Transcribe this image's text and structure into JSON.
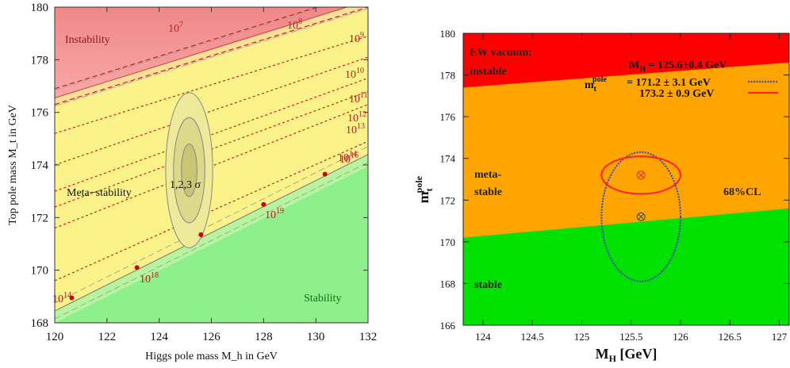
{
  "chart_data": [
    {
      "type": "area",
      "xlabel": "Higgs pole mass M_h in GeV",
      "ylabel": "Top pole mass M_t in GeV",
      "xlim": [
        120,
        132
      ],
      "ylim": [
        168,
        180
      ],
      "xticks": [
        "120",
        "122",
        "124",
        "126",
        "128",
        "130",
        "132"
      ],
      "yticks": [
        "168",
        "170",
        "172",
        "174",
        "176",
        "178",
        "180"
      ],
      "regions": [
        {
          "label": "Instability",
          "color": "#f08a8a"
        },
        {
          "label": "Meta−stability",
          "color": "#fbf38a"
        },
        {
          "label": "Stability",
          "color": "#8ef08a"
        }
      ],
      "instability_boundary": {
        "x": [
          120,
          132
        ],
        "y": [
          176.55,
          180.25
        ]
      },
      "stability_boundary": {
        "x": [
          120,
          132
        ],
        "y": [
          168.45,
          174.4
        ]
      },
      "lifetime_lines": [
        {
          "label": "10",
          "exp": "7",
          "x": [
            120,
            132
          ],
          "y": [
            176.9,
            180.6
          ]
        },
        {
          "label": "10",
          "exp": "8",
          "x": [
            120,
            132
          ],
          "y": [
            176.3,
            180.0
          ]
        },
        {
          "label": "10",
          "exp": "9",
          "x": [
            120,
            132
          ],
          "y": [
            175.2,
            178.9
          ]
        },
        {
          "label": "10",
          "exp": "10",
          "x": [
            120,
            132
          ],
          "y": [
            174.0,
            178.1
          ]
        },
        {
          "label": "10",
          "exp": "11",
          "x": [
            120,
            132
          ],
          "y": [
            173.0,
            177.3
          ]
        },
        {
          "label": "10",
          "exp": "12",
          "x": [
            120,
            132
          ],
          "y": [
            172.4,
            176.8
          ]
        },
        {
          "label": "10",
          "exp": "13",
          "x": [
            120,
            132
          ],
          "y": [
            171.6,
            176.3
          ]
        },
        {
          "label": "10",
          "exp": "14",
          "x": [
            120,
            132
          ],
          "y": [
            169.6,
            174.9
          ]
        }
      ],
      "points": [
        {
          "x": 120.65,
          "y": 168.95,
          "label": "10",
          "exp": "14"
        },
        {
          "x": 123.15,
          "y": 170.1,
          "label": "10",
          "exp": "18"
        },
        {
          "x": 125.6,
          "y": 171.35,
          "label": "",
          "exp": ""
        },
        {
          "x": 128.0,
          "y": 172.5,
          "label": "10",
          "exp": "19"
        },
        {
          "x": 130.35,
          "y": 173.65,
          "label": "10",
          "exp": "16"
        }
      ],
      "ellipse": {
        "center": [
          125.15,
          173.8
        ],
        "sigma_x": [
          0.3,
          0.6,
          0.9
        ],
        "sigma_y": [
          1.0,
          2.0,
          2.95
        ],
        "label": "1,2,3 σ"
      }
    },
    {
      "type": "area",
      "xlabel": "M",
      "xlabel_sub": "H",
      "xlabel_unit": "[GeV]",
      "ylabel": "m",
      "ylabel_sub": "t",
      "ylabel_sup": "pole",
      "xlim": [
        123.8,
        127.1
      ],
      "ylim": [
        166,
        180
      ],
      "xticks": [
        124,
        124.5,
        125,
        125.5,
        126,
        126.5,
        127
      ],
      "yticks": [
        166,
        168,
        170,
        172,
        174,
        176,
        178,
        180
      ],
      "regions": [
        {
          "label_lines": [
            "EW vacuum:",
            "instable"
          ],
          "color": "#ff0000"
        },
        {
          "label_lines": [
            "meta-",
            "stable"
          ],
          "color": "#ffa500"
        },
        {
          "label_lines": [
            "stable"
          ],
          "color": "#00e100"
        }
      ],
      "instability_boundary": {
        "x": [
          123.8,
          127.1
        ],
        "y": [
          177.4,
          178.6
        ]
      },
      "stability_boundary": {
        "x": [
          123.8,
          127.1
        ],
        "y": [
          170.2,
          171.6
        ]
      },
      "legend": {
        "mh": "M",
        "mh_sub": "H",
        "mh_value": " = 125.6±0.4 GeV",
        "mt": "m",
        "mt_sub": "t",
        "mt_sup": "pole",
        "entries": [
          {
            "text": "= 171.2 ± 3.1 GeV",
            "color": "#4a4ab0"
          },
          {
            "text": "173.2 ± 0.9 GeV",
            "color": "#ff1f1f"
          }
        ],
        "cl": "68%CL"
      },
      "series": [
        {
          "name": "171.2 ± 3.1 GeV",
          "center": [
            125.6,
            171.2
          ],
          "dx": 0.4,
          "dy": 3.1,
          "color": "#4a4ab0"
        },
        {
          "name": "173.2 ± 0.9 GeV",
          "center": [
            125.6,
            173.2
          ],
          "dx": 0.4,
          "dy": 0.9,
          "color": "#ff1f1f"
        }
      ]
    }
  ]
}
